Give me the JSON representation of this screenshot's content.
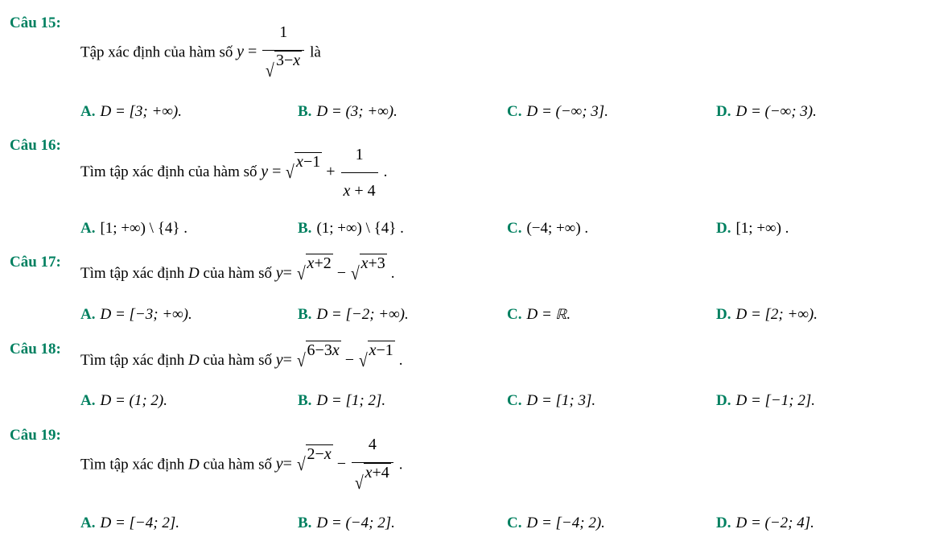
{
  "colors": {
    "brand": "#008060",
    "text": "#000000",
    "background": "#ffffff"
  },
  "font": {
    "family": "Times New Roman",
    "body_size_pt": 14,
    "math_size_pt": 15,
    "weight_label": "bold"
  },
  "labels": {
    "q15": "Câu 15:",
    "q16": "Câu 16:",
    "q17": "Câu 17:",
    "q18": "Câu 18:",
    "q19": "Câu 19:",
    "A": "A.",
    "B": "B.",
    "C": "C.",
    "D": "D."
  },
  "q15": {
    "stem_before": "Tập xác định của hàm số ",
    "stem_after": " là",
    "expr": {
      "lhs": "y",
      "op": "=",
      "frac_num": "1",
      "sqrt_arg_parts": [
        "3",
        "−",
        "x"
      ]
    },
    "A": "D = [3; +∞).",
    "B": "D = (3; +∞).",
    "C": "D = (−∞; 3].",
    "D": "D = (−∞; 3)."
  },
  "q16": {
    "stem_before": "Tìm tập xác định của hàm số ",
    "stem_after": " .",
    "expr": {
      "lhs": "y",
      "op": "=",
      "sqrt_arg_parts": [
        "x",
        "−",
        "1"
      ],
      "plus": " + ",
      "frac_num": "1",
      "frac_den_parts": [
        "x",
        " + ",
        "4"
      ]
    },
    "A": "[1; +∞) \\ {4} .",
    "B": "(1; +∞) \\ {4} .",
    "C": "(−4; +∞) .",
    "D": "[1; +∞) ."
  },
  "q17": {
    "stem_before": "Tìm tập xác định ",
    "stem_mid": " của hàm số ",
    "stem_after": ".",
    "Dvar": "D",
    "expr": {
      "lhs": "y",
      "op": "=",
      "sqrt1_parts": [
        "x",
        "+",
        "2"
      ],
      "minus": " − ",
      "sqrt2_parts": [
        "x",
        "+",
        "3"
      ]
    },
    "A": "D = [−3; +∞).",
    "B": "D = [−2; +∞).",
    "C_prefix": "D = ",
    "C_setR": "ℝ",
    "C_suffix": ".",
    "D": "D = [2; +∞)."
  },
  "q18": {
    "stem_before": "Tìm tập xác định ",
    "stem_mid": " của hàm số ",
    "stem_after": ".",
    "Dvar": "D",
    "expr": {
      "lhs": "y",
      "op": "=",
      "sqrt1_parts": [
        "6",
        "−",
        "3",
        "x"
      ],
      "minus": " − ",
      "sqrt2_parts": [
        "x",
        "−",
        "1"
      ]
    },
    "A": "D = (1; 2).",
    "B": "D = [1; 2].",
    "C": "D = [1; 3].",
    "D": "D = [−1; 2]."
  },
  "q19": {
    "stem_before": "Tìm tập xác định ",
    "stem_mid": " của hàm số ",
    "stem_after": " .",
    "Dvar": "D",
    "expr": {
      "lhs": "y",
      "op": "=",
      "sqrt1_parts": [
        "2",
        "−",
        "x"
      ],
      "minus": " − ",
      "frac_num": "4",
      "sqrt2_parts": [
        "x",
        "+",
        "4"
      ]
    },
    "A": "D = [−4; 2].",
    "B": "D = (−4; 2].",
    "C": "D = [−4; 2).",
    "D": "D = (−2; 4]."
  }
}
